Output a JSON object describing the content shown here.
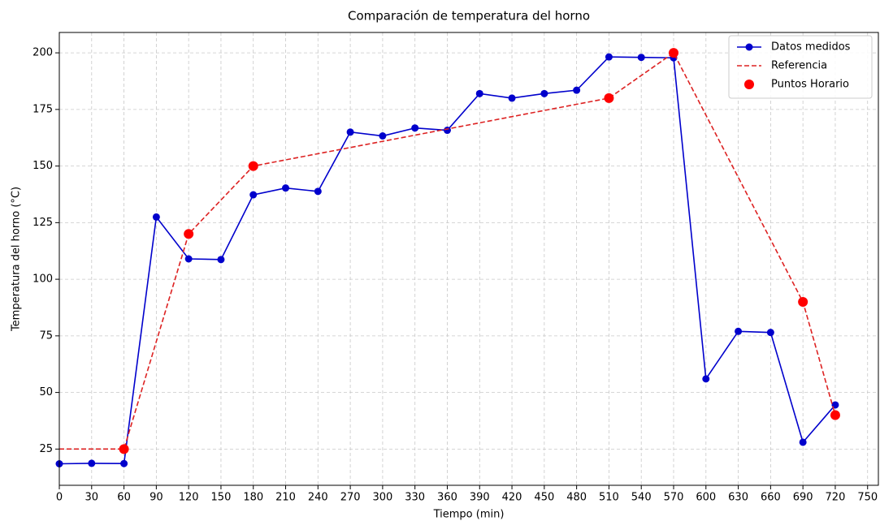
{
  "chart_data": {
    "type": "line",
    "title": "Comparación de temperatura del horno",
    "xlabel": "Tiempo (min)",
    "ylabel": "Temperatura del horno (°C)",
    "series": [
      {
        "name": "Datos medidos",
        "color": "#0000cc",
        "style": "solid-marker",
        "x": [
          0,
          30,
          60,
          90,
          120,
          150,
          180,
          210,
          240,
          270,
          300,
          330,
          360,
          390,
          420,
          450,
          480,
          510,
          540,
          570,
          600,
          630,
          660,
          690,
          720
        ],
        "values": [
          18.5,
          18.7,
          18.6,
          127.5,
          109,
          108.7,
          137.3,
          140.3,
          138.8,
          165,
          163.3,
          166.8,
          165.8,
          182,
          180,
          182,
          183.5,
          198.2,
          198,
          197.8,
          56,
          77,
          76.5,
          28,
          44.5
        ]
      },
      {
        "name": "Referencia",
        "color": "#dd2222",
        "style": "dashed",
        "x": [
          0,
          60,
          120,
          180,
          510,
          570,
          690,
          720
        ],
        "values": [
          25,
          25,
          120,
          150,
          180,
          200,
          90,
          40
        ]
      },
      {
        "name": "Puntos Horario",
        "color": "#ff0000",
        "style": "scatter",
        "x": [
          60,
          120,
          180,
          510,
          570,
          690,
          720
        ],
        "values": [
          25,
          120,
          150,
          180,
          200,
          90,
          40
        ]
      }
    ],
    "xlim": [
      0,
      760
    ],
    "xticks": [
      0,
      30,
      60,
      90,
      120,
      150,
      180,
      210,
      240,
      270,
      300,
      330,
      360,
      390,
      420,
      450,
      480,
      510,
      540,
      570,
      600,
      630,
      660,
      690,
      720,
      750
    ],
    "ylim": [
      9,
      209
    ],
    "yticks": [
      25,
      50,
      75,
      100,
      125,
      150,
      175,
      200
    ],
    "grid": true,
    "legend": "upper right"
  }
}
